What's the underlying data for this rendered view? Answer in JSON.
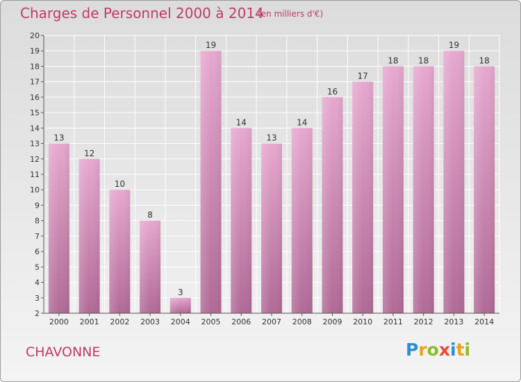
{
  "header": {
    "title": "Charges de Personnel 2000 à 2014",
    "subtitle": "(en milliers d'€)"
  },
  "footer": {
    "commune": "CHAVONNE",
    "logo": "Proxiti"
  },
  "colors": {
    "title": "#c0396b",
    "bar_top": "#e6a8cf",
    "bar_bottom": "#b06a96",
    "grid": "#ffffff"
  },
  "chart_data": {
    "type": "bar",
    "title": "Charges de Personnel 2000 à 2014",
    "subtitle": "(en milliers d'€)",
    "xlabel": "",
    "ylabel": "",
    "categories": [
      "2000",
      "2001",
      "2002",
      "2003",
      "2004",
      "2005",
      "2006",
      "2007",
      "2008",
      "2009",
      "2010",
      "2011",
      "2012",
      "2013",
      "2014"
    ],
    "values": [
      13,
      12,
      10,
      8,
      3,
      19,
      14,
      13,
      14,
      16,
      17,
      18,
      18,
      19,
      18
    ],
    "ylim": [
      2,
      20
    ],
    "yticks": [
      2,
      3,
      4,
      5,
      6,
      7,
      8,
      9,
      10,
      11,
      12,
      13,
      14,
      15,
      16,
      17,
      18,
      19,
      20
    ],
    "grid": true,
    "data_labels": true
  }
}
